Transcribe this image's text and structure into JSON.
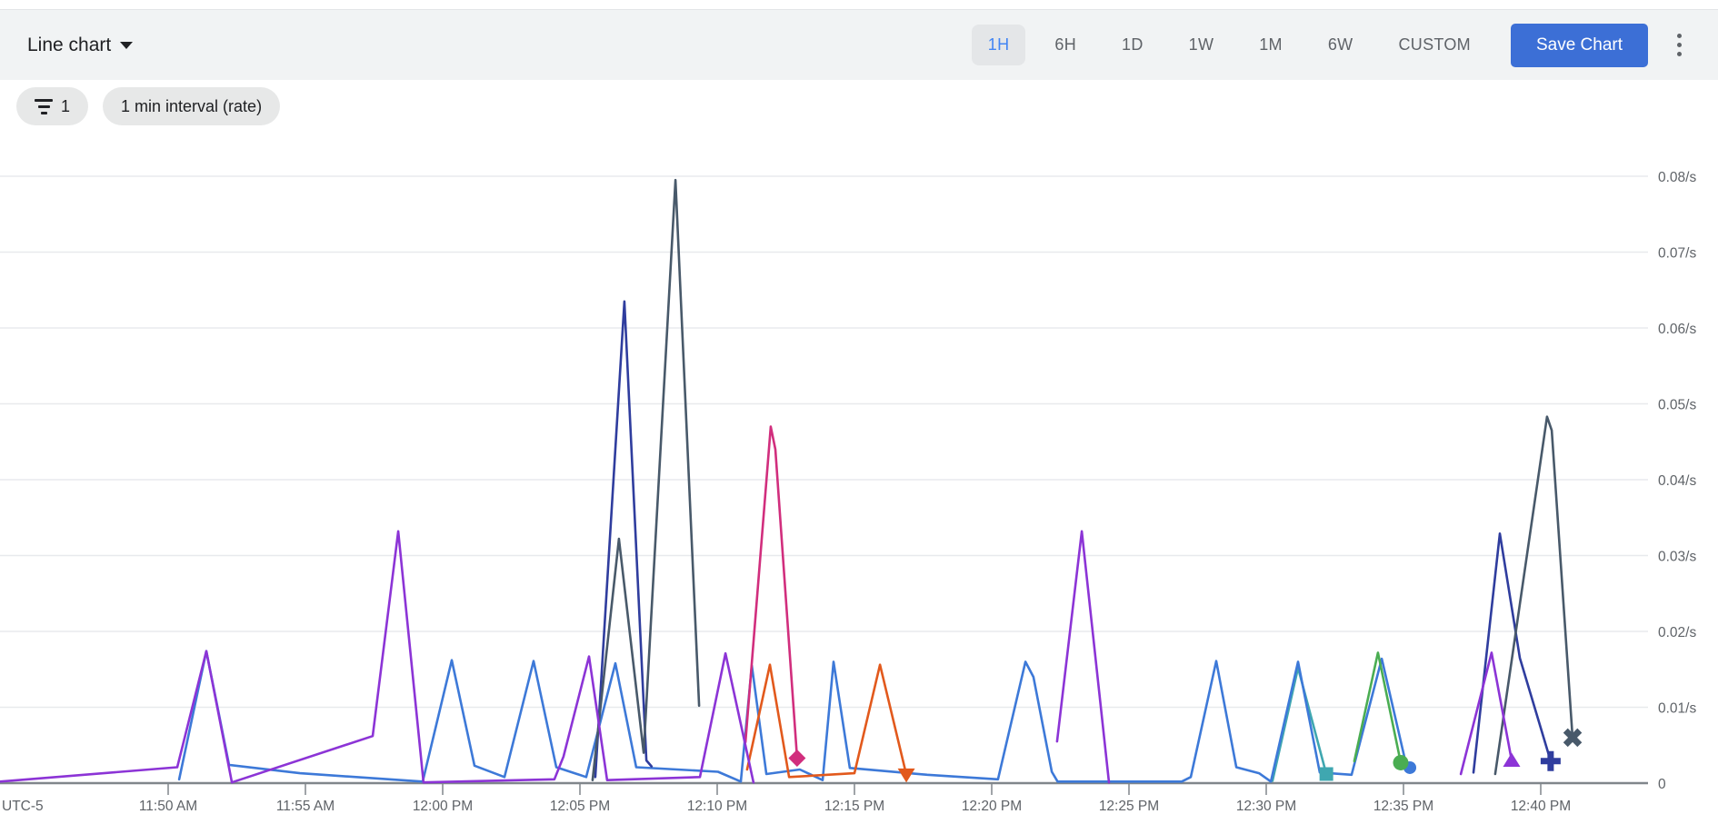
{
  "toolbar": {
    "chart_type_label": "Line chart",
    "time_ranges": [
      "1H",
      "6H",
      "1D",
      "1W",
      "1M",
      "6W",
      "CUSTOM"
    ],
    "selected_range": "1H",
    "save_button_label": "Save Chart"
  },
  "chips": {
    "filter_count": "1",
    "interval_label": "1 min interval (rate)"
  },
  "colors": {
    "toolbar_bg": "#f1f3f4",
    "selected_range_bg": "#e4e6e8",
    "selected_range_text": "#4285f4",
    "save_button_bg": "#3c6fd6",
    "grid": "#e8eaed",
    "axis_line": "#80868b",
    "axis_text": "#5f6368"
  },
  "chart_data": {
    "type": "line",
    "title": "",
    "grid": true,
    "legend": "none",
    "x_axis": {
      "timezone_label": "UTC-5",
      "tick_labels": [
        "11:50 AM",
        "11:55 AM",
        "12:00 PM",
        "12:05 PM",
        "12:10 PM",
        "12:15 PM",
        "12:20 PM",
        "12:25 PM",
        "12:30 PM",
        "12:35 PM",
        "12:40 PM"
      ],
      "tick_minutes": [
        0,
        5,
        10,
        15,
        20,
        25,
        30,
        35,
        40,
        45,
        50
      ],
      "minutes_range": [
        -6.2,
        53.9
      ]
    },
    "y_axis": {
      "unit": "/s",
      "ticks": [
        {
          "v": 0.0,
          "label": "0"
        },
        {
          "v": 0.01,
          "label": "0.01/s"
        },
        {
          "v": 0.02,
          "label": "0.02/s"
        },
        {
          "v": 0.03,
          "label": "0.03/s"
        },
        {
          "v": 0.04,
          "label": "0.04/s"
        },
        {
          "v": 0.05,
          "label": "0.05/s"
        },
        {
          "v": 0.06,
          "label": "0.06/s"
        },
        {
          "v": 0.07,
          "label": "0.07/s"
        },
        {
          "v": 0.08,
          "label": "0.08/s"
        }
      ],
      "range": [
        0,
        0.085
      ]
    },
    "series": [
      {
        "name": "teal",
        "color": "#3fa7b0",
        "end_marker": "square",
        "points": [
          [
            40.23,
            0.0003
          ],
          [
            41.16,
            0.0152
          ],
          [
            42.19,
            0.0012
          ]
        ]
      },
      {
        "name": "blue",
        "color": "#3d79d8",
        "end_marker": "circle-small",
        "points": [
          [
            0.4,
            0.0005
          ],
          [
            1.39,
            0.0174
          ],
          [
            2.22,
            0.0024
          ],
          [
            4.8,
            0.0013
          ],
          [
            9.27,
            0.0002
          ],
          [
            10.33,
            0.0162
          ],
          [
            11.16,
            0.0023
          ],
          [
            12.25,
            0.0008
          ],
          [
            13.31,
            0.0161
          ],
          [
            14.14,
            0.0021
          ],
          [
            15.23,
            0.0008
          ],
          [
            16.29,
            0.0158
          ],
          [
            17.05,
            0.0021
          ],
          [
            20.03,
            0.0015
          ],
          [
            20.86,
            0.0002
          ],
          [
            21.26,
            0.0155
          ],
          [
            21.79,
            0.0012
          ],
          [
            23.01,
            0.0018
          ],
          [
            23.84,
            0.0004
          ],
          [
            24.24,
            0.016
          ],
          [
            24.83,
            0.002
          ],
          [
            27.65,
            0.0011
          ],
          [
            30.23,
            0.0005
          ],
          [
            31.23,
            0.016
          ],
          [
            31.52,
            0.014
          ],
          [
            32.19,
            0.0015
          ],
          [
            32.4,
            0.0002
          ],
          [
            36.92,
            0.0002
          ],
          [
            37.25,
            0.0008
          ],
          [
            38.18,
            0.0161
          ],
          [
            38.91,
            0.0021
          ],
          [
            39.74,
            0.0013
          ],
          [
            40.17,
            0.0002
          ],
          [
            41.16,
            0.016
          ],
          [
            41.95,
            0.0014
          ],
          [
            43.11,
            0.0011
          ],
          [
            44.21,
            0.0164
          ],
          [
            45.1,
            0.0024
          ]
        ]
      },
      {
        "name": "green",
        "color": "#4aad52",
        "end_marker": "circle",
        "points": [
          [
            43.21,
            0.0029
          ],
          [
            44.07,
            0.0172
          ],
          [
            44.9,
            0.0027
          ]
        ]
      },
      {
        "name": "orange",
        "color": "#e2591c",
        "end_marker": "triangle-down",
        "points": [
          [
            21.09,
            0.0018
          ],
          [
            21.92,
            0.0156
          ],
          [
            22.62,
            0.0008
          ],
          [
            25.0,
            0.0013
          ],
          [
            25.93,
            0.0156
          ],
          [
            26.89,
            0.0011
          ]
        ]
      },
      {
        "name": "pink",
        "color": "#d12e7d",
        "end_marker": "diamond",
        "points": [
          [
            21.03,
            0.0054
          ],
          [
            21.95,
            0.047
          ],
          [
            22.12,
            0.044
          ],
          [
            22.91,
            0.0033
          ]
        ]
      },
      {
        "name": "navy-1",
        "color": "#2f3d9e",
        "end_marker": null,
        "points": [
          [
            15.56,
            0.0008
          ],
          [
            16.62,
            0.0635
          ],
          [
            17.42,
            0.003
          ],
          [
            17.61,
            0.0022
          ]
        ]
      },
      {
        "name": "navy-2",
        "color": "#2f3d9e",
        "end_marker": "plus",
        "points": [
          [
            47.55,
            0.0014
          ],
          [
            48.51,
            0.0329
          ],
          [
            49.24,
            0.0165
          ],
          [
            50.36,
            0.0029
          ]
        ]
      },
      {
        "name": "slate-1",
        "color": "#48596a",
        "end_marker": null,
        "points": [
          [
            15.46,
            0.0004
          ],
          [
            16.42,
            0.0322
          ],
          [
            17.32,
            0.004
          ],
          [
            18.48,
            0.0795
          ],
          [
            19.34,
            0.0102
          ]
        ]
      },
      {
        "name": "slate-2",
        "color": "#48596a",
        "end_marker": "x",
        "points": [
          [
            48.34,
            0.0012
          ],
          [
            50.23,
            0.0483
          ],
          [
            50.4,
            0.0465
          ],
          [
            51.16,
            0.006
          ]
        ]
      },
      {
        "name": "purple-1",
        "color": "#8c34d6",
        "end_marker": null,
        "points": [
          [
            -6.13,
            0.0002
          ],
          [
            0.33,
            0.0021
          ],
          [
            1.39,
            0.0174
          ],
          [
            2.32,
            0.0001
          ],
          [
            7.45,
            0.0062
          ],
          [
            8.38,
            0.0332
          ],
          [
            9.3,
            0.0001
          ],
          [
            14.07,
            0.0005
          ],
          [
            14.4,
            0.0035
          ],
          [
            15.33,
            0.0167
          ],
          [
            15.99,
            0.0004
          ],
          [
            19.37,
            0.0008
          ],
          [
            20.3,
            0.0171
          ],
          [
            21.32,
            0.0001
          ]
        ]
      },
      {
        "name": "purple-2",
        "color": "#8c34d6",
        "end_marker": null,
        "points": [
          [
            32.38,
            0.0055
          ],
          [
            33.28,
            0.0332
          ],
          [
            34.27,
            0.0001
          ]
        ]
      },
      {
        "name": "purple-3",
        "color": "#8c34d6",
        "end_marker": "triangle-up",
        "points": [
          [
            47.09,
            0.0012
          ],
          [
            48.21,
            0.0172
          ],
          [
            48.94,
            0.003
          ]
        ]
      }
    ]
  }
}
